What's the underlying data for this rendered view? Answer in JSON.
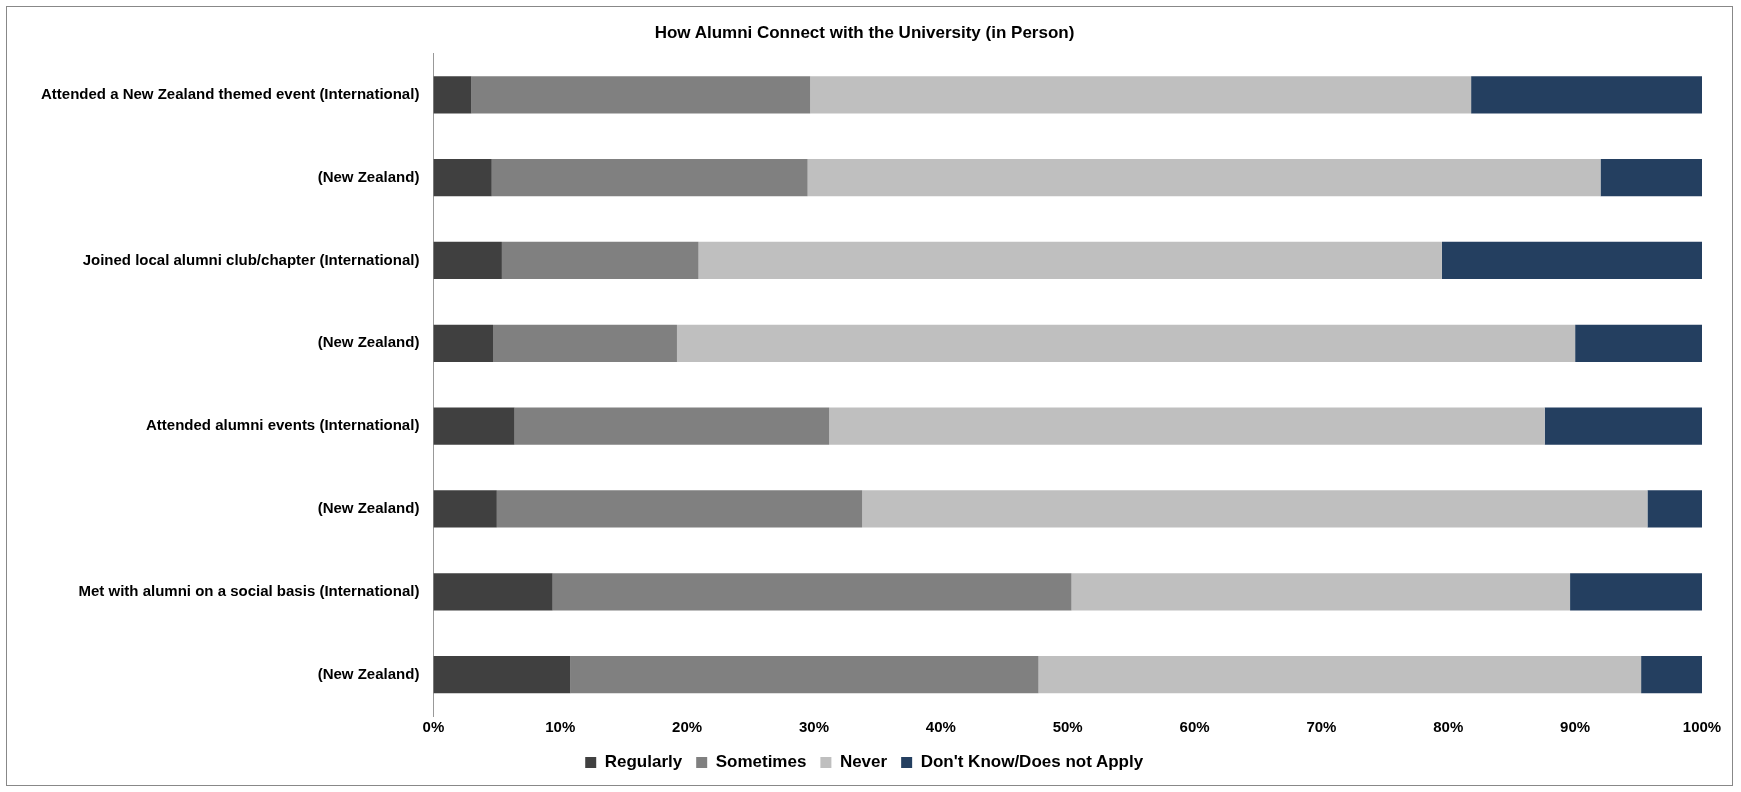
{
  "chart_data": {
    "type": "bar",
    "orientation": "horizontal",
    "stacked": true,
    "title": "How Alumni Connect with the University (in Person)",
    "categories": [
      "Attended a New Zealand themed event (International)",
      "(New Zealand)",
      "Joined local alumni club/chapter (International)",
      "(New Zealand)",
      "Attended alumni events (International)",
      "(New Zealand)",
      "Met with alumni on a social basis (International)",
      "(New Zealand)"
    ],
    "series": [
      {
        "name": "Regularly",
        "color": "#404040",
        "values": [
          3.0,
          4.6,
          5.4,
          4.7,
          6.4,
          5.0,
          9.4,
          10.8
        ]
      },
      {
        "name": "Sometimes",
        "color": "#808080",
        "values": [
          26.7,
          24.9,
          15.5,
          14.5,
          24.8,
          28.8,
          40.9,
          36.9
        ]
      },
      {
        "name": "Never",
        "color": "#bfbfbf",
        "values": [
          52.1,
          62.5,
          58.6,
          70.8,
          56.4,
          61.9,
          39.3,
          47.5
        ]
      },
      {
        "name": "Don't Know/Does not Apply",
        "color": "#243f60",
        "values": [
          18.2,
          8.0,
          20.5,
          10.0,
          12.4,
          4.3,
          10.4,
          4.8
        ]
      }
    ],
    "xlim": [
      0,
      100
    ],
    "xticks": [
      {
        "value": 0,
        "label": "0%"
      },
      {
        "value": 10,
        "label": "10%"
      },
      {
        "value": 20,
        "label": "20%"
      },
      {
        "value": 30,
        "label": "30%"
      },
      {
        "value": 40,
        "label": "40%"
      },
      {
        "value": 50,
        "label": "50%"
      },
      {
        "value": 60,
        "label": "60%"
      },
      {
        "value": 70,
        "label": "70%"
      },
      {
        "value": 80,
        "label": "80%"
      },
      {
        "value": 90,
        "label": "90%"
      },
      {
        "value": 100,
        "label": "100%"
      }
    ],
    "grid": false,
    "legend": "bottom"
  }
}
